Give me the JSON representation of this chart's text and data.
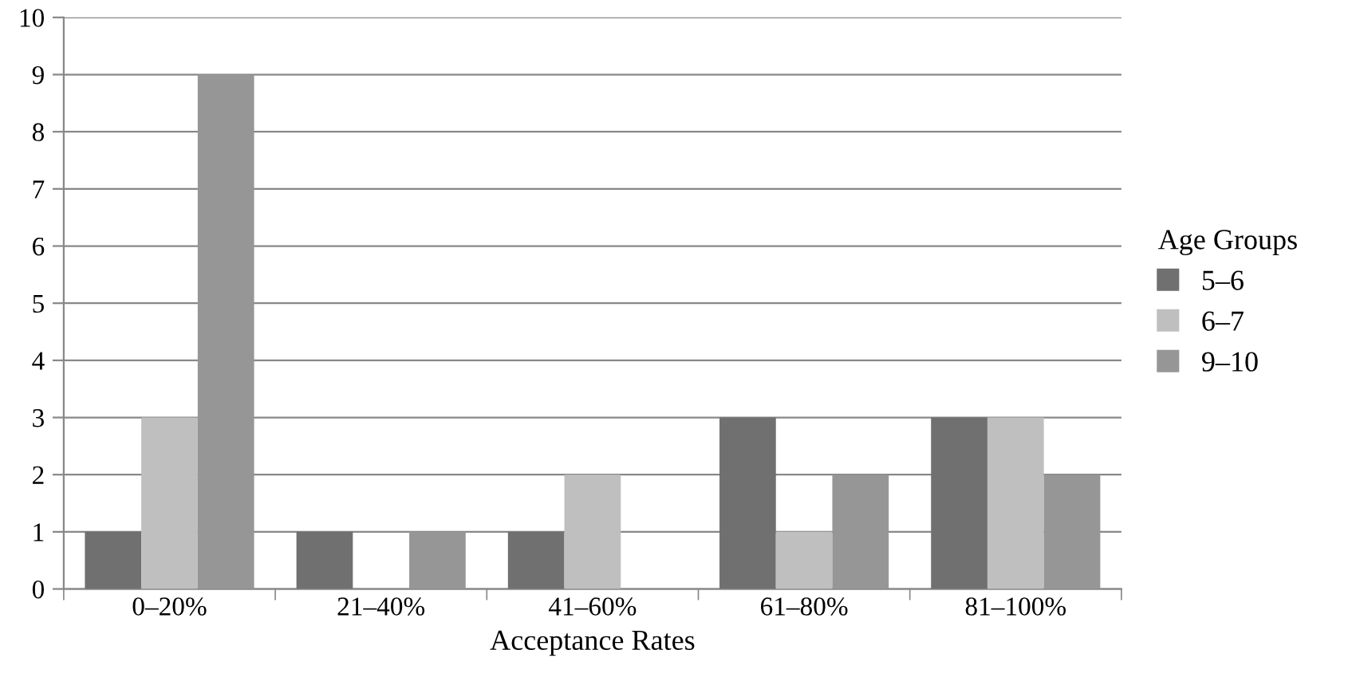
{
  "chart_data": {
    "type": "bar",
    "xlabel": "Acceptance Rates",
    "legend_title": "Age Groups",
    "categories": [
      "0–20%",
      "21–40%",
      "41–60%",
      "61–80%",
      "81–100%"
    ],
    "series": [
      {
        "name": "5–6",
        "color": "#707070",
        "values": [
          1,
          1,
          1,
          3,
          3
        ]
      },
      {
        "name": "6–7",
        "color": "#bfbfbf",
        "values": [
          3,
          0,
          2,
          1,
          3
        ]
      },
      {
        "name": "9–10",
        "color": "#969696",
        "values": [
          9,
          1,
          0,
          2,
          2
        ]
      }
    ],
    "ylim": [
      0,
      10
    ],
    "yticks": [
      0,
      1,
      2,
      3,
      4,
      5,
      6,
      7,
      8,
      9,
      10
    ],
    "grid": "y",
    "legend": "right"
  }
}
